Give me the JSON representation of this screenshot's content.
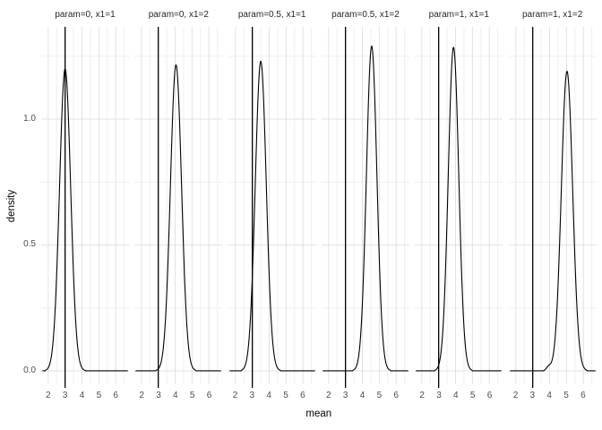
{
  "chart_data": {
    "type": "line",
    "subtype": "faceted-density",
    "title": "",
    "xlabel": "mean",
    "ylabel": "density",
    "x_domain": [
      1.585,
      6.785
    ],
    "y_domain": [
      -0.05,
      1.3665
    ],
    "x_ticks": [
      2,
      3,
      4,
      5,
      6
    ],
    "x_minor_ticks": [
      2.5,
      3.5,
      4.5,
      5.5,
      6.5
    ],
    "y_ticks": [
      0.0,
      0.5,
      1.0
    ],
    "y_tick_labels": [
      "0.0",
      "0.5",
      "1.0"
    ],
    "y_minor_ticks": [
      0.25,
      0.75,
      1.25
    ],
    "grid": "on",
    "legend": "none",
    "facets": [
      {
        "label": "param=0, x1=1",
        "vline_x": 3,
        "density": {
          "center": 3.0,
          "sd": 0.33,
          "peak": 1.2
        }
      },
      {
        "label": "param=0, x1=2",
        "vline_x": 3,
        "density": {
          "center": 4.05,
          "sd": 0.33,
          "peak": 1.215
        }
      },
      {
        "label": "param=0.5, x1=1",
        "vline_x": 3,
        "density": {
          "center": 3.5,
          "sd": 0.325,
          "peak": 1.23
        }
      },
      {
        "label": "param=0.5, x1=2",
        "vline_x": 3,
        "density": {
          "center": 4.55,
          "sd": 0.31,
          "peak": 1.29
        }
      },
      {
        "label": "param=1, x1=1",
        "vline_x": 3,
        "density": {
          "center": 3.88,
          "sd": 0.31,
          "peak": 1.285
        }
      },
      {
        "label": "param=1, x1=2",
        "vline_x": 3,
        "density": {
          "center": 5.03,
          "sd": 0.335,
          "peak": 1.19,
          "bumps": [
            {
              "center": 3.95,
              "sd": 0.14,
              "peak": 0.015
            }
          ]
        }
      }
    ],
    "colors": {
      "curve": "#000000",
      "vline": "#000000",
      "grid_major": "#e2e2e2",
      "grid_minor": "#efefef",
      "tick_label": "#4d4d4d",
      "strip_text": "#262626",
      "axis_title": "#000000",
      "background": "#ffffff"
    }
  }
}
